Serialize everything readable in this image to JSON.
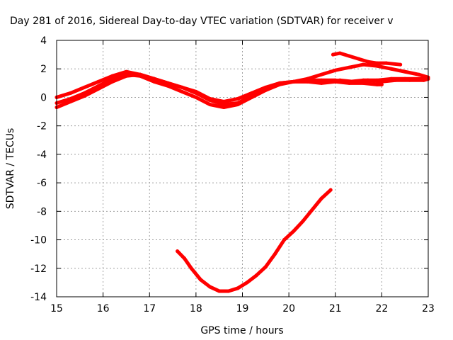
{
  "chart_data": {
    "type": "scatter",
    "title": "Day 281 of 2016, Sidereal Day-to-day VTEC variation (SDTVAR) for receiver v",
    "xlabel": "GPS time / hours",
    "ylabel": "SDTVAR / TECUs",
    "xlim": [
      15,
      23
    ],
    "ylim": [
      -14,
      4
    ],
    "x_ticks": [
      "15",
      "16",
      "17",
      "18",
      "19",
      "20",
      "21",
      "22",
      "23"
    ],
    "y_ticks": [
      "4",
      "2",
      "0",
      "-2",
      "-4",
      "-6",
      "-8",
      "-10",
      "-12",
      "-14"
    ],
    "grid": true,
    "series_color": "#ff0000",
    "series": [
      {
        "x": [
          15.0,
          15.3,
          15.6,
          15.9,
          16.2,
          16.5,
          16.8,
          17.1,
          17.4,
          17.7,
          18.0,
          18.3,
          18.6,
          18.9,
          19.2,
          19.5,
          19.8,
          20.1,
          20.4,
          20.7,
          21.0,
          21.3,
          21.6,
          21.9,
          22.2,
          22.5,
          22.8,
          23.0
        ],
        "y": [
          -0.4,
          -0.1,
          0.3,
          0.8,
          1.3,
          1.6,
          1.5,
          1.1,
          0.8,
          0.4,
          0.0,
          -0.5,
          -0.7,
          -0.5,
          0.0,
          0.5,
          0.9,
          1.1,
          1.2,
          1.2,
          1.2,
          1.1,
          1.2,
          1.2,
          1.3,
          1.3,
          1.3,
          1.3
        ]
      },
      {
        "x": [
          15.0,
          15.3,
          15.6,
          15.9,
          16.2,
          16.5,
          16.8,
          17.1,
          17.4,
          17.7,
          18.0,
          18.3,
          18.6,
          18.9,
          19.2,
          19.5,
          19.8,
          20.1,
          20.4,
          20.7,
          21.0,
          21.3,
          21.6,
          21.9,
          22.0
        ],
        "y": [
          -0.7,
          -0.3,
          0.1,
          0.6,
          1.1,
          1.5,
          1.6,
          1.3,
          1.0,
          0.7,
          0.3,
          -0.2,
          -0.5,
          -0.4,
          0.1,
          0.6,
          1.0,
          1.1,
          1.1,
          1.0,
          1.1,
          1.0,
          1.0,
          0.9,
          0.9
        ]
      },
      {
        "x": [
          15.0,
          15.3,
          15.6,
          15.9,
          16.2,
          16.5,
          16.8,
          17.1,
          17.4,
          17.7,
          18.0,
          18.3,
          18.6,
          18.9,
          19.2,
          19.5,
          19.8,
          20.1,
          20.4,
          20.7,
          21.0,
          21.3,
          21.6,
          21.9,
          22.2,
          22.5,
          22.8,
          23.0
        ],
        "y": [
          0.0,
          0.3,
          0.7,
          1.1,
          1.5,
          1.8,
          1.6,
          1.3,
          1.0,
          0.7,
          0.4,
          -0.1,
          -0.3,
          -0.1,
          0.3,
          0.7,
          1.0,
          1.1,
          1.3,
          1.6,
          1.9,
          2.1,
          2.3,
          2.2,
          2.0,
          1.8,
          1.6,
          1.4
        ]
      },
      {
        "x": [
          20.95,
          21.1,
          21.3,
          21.5,
          21.7,
          21.9,
          22.1,
          22.4
        ],
        "y": [
          3.0,
          3.1,
          2.9,
          2.7,
          2.5,
          2.4,
          2.4,
          2.3
        ]
      },
      {
        "x": [
          20.9,
          21.1,
          21.4,
          21.7,
          22.0,
          22.3,
          22.6,
          22.9,
          23.0
        ],
        "y": [
          1.1,
          1.2,
          1.1,
          1.2,
          1.1,
          1.2,
          1.2,
          1.2,
          1.3
        ]
      },
      {
        "x": [
          17.6,
          17.75,
          17.9,
          18.1,
          18.3,
          18.5,
          18.7,
          18.9,
          19.1,
          19.3,
          19.5,
          19.7,
          19.9,
          20.1,
          20.3,
          20.5,
          20.7,
          20.9
        ],
        "y": [
          -10.8,
          -11.3,
          -12.0,
          -12.8,
          -13.3,
          -13.6,
          -13.6,
          -13.4,
          -13.0,
          -12.5,
          -11.9,
          -11.0,
          -10.0,
          -9.4,
          -8.7,
          -7.9,
          -7.1,
          -6.5
        ]
      }
    ]
  }
}
